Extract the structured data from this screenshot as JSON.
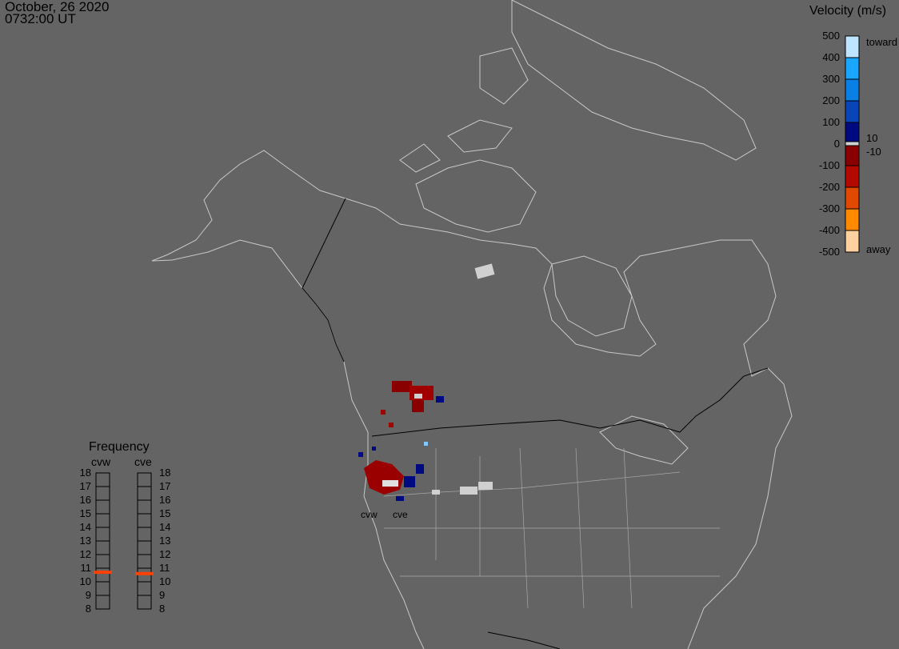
{
  "header": {
    "date": "October, 26 2020",
    "time": "0732:00 UT"
  },
  "velocity_scale": {
    "title": "Velocity (m/s)",
    "ticks": [
      "500",
      "400",
      "300",
      "200",
      "100",
      "0",
      "-100",
      "-200",
      "-300",
      "-400",
      "-500"
    ],
    "toward_label": "toward",
    "away_label": "away",
    "inner_labels": [
      "10",
      "-10"
    ],
    "colors": [
      "#bfe4ff",
      "#1aa6ff",
      "#0a7fe6",
      "#0a45b8",
      "#000a80",
      "#d0d0d0",
      "#8a0000",
      "#b30a00",
      "#e04a00",
      "#ff8a00",
      "#ffd0a0"
    ]
  },
  "frequency": {
    "title": "Frequency",
    "radars": [
      {
        "name": "cvw",
        "value_mhz": 10.7
      },
      {
        "name": "cve",
        "value_mhz": 10.6
      }
    ],
    "ticks": [
      "18",
      "17",
      "16",
      "15",
      "14",
      "13",
      "12",
      "11",
      "10",
      "9",
      "8"
    ],
    "indicator_color": "#ff4000"
  },
  "map": {
    "radar_labels": [
      "cvw",
      "cve"
    ],
    "land_outline_color": "#c8c8c8",
    "border_color": "#000000",
    "background_color": "#646464"
  }
}
